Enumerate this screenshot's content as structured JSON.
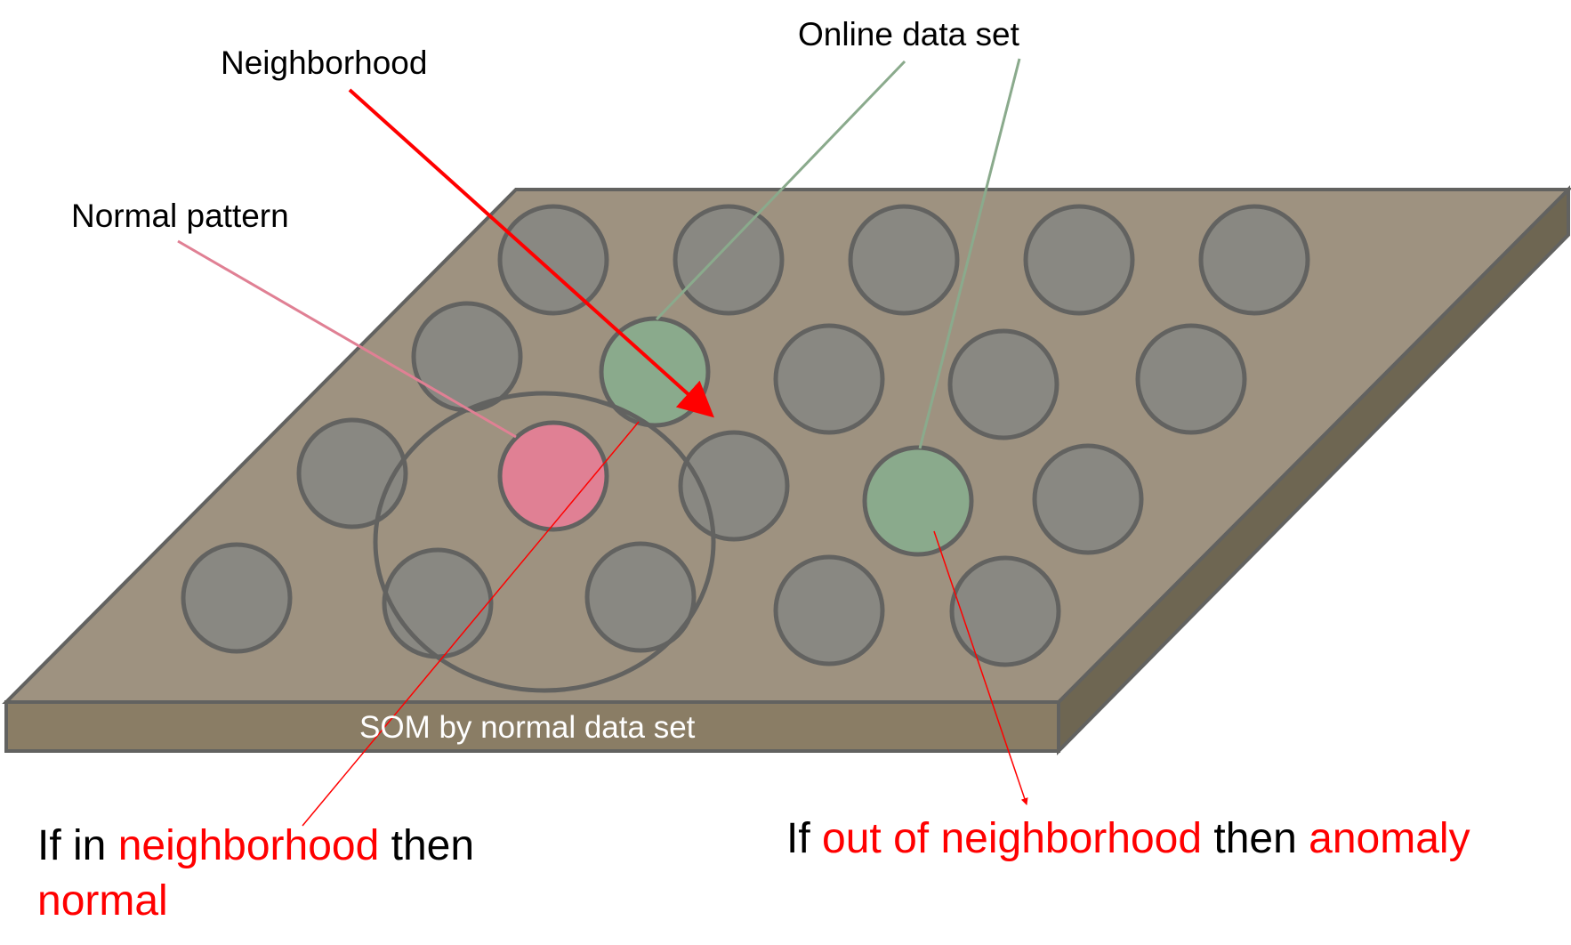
{
  "labels": {
    "neighborhood": "Neighborhood",
    "online_data_set": "Online data set",
    "normal_pattern": "Normal pattern",
    "plate_caption": "SOM by normal data set"
  },
  "rule_left": {
    "p1": "If in ",
    "p2": "neighborhood",
    "p3": " then",
    "p4": "normal"
  },
  "rule_right": {
    "p1": "If ",
    "p2": "out of neighborhood",
    "p3": " then ",
    "p4": "anomaly"
  },
  "colors": {
    "plate_top": "#9e9280",
    "plate_front": "#8a7d65",
    "plate_side": "#6e6652",
    "node_gray": "#898882",
    "node_online": "#8aaa8c",
    "node_normal": "#e08094",
    "outline": "#626260",
    "arrow_red": "#ff0000",
    "line_green": "#8aaa8c",
    "line_pink": "#e08094"
  }
}
